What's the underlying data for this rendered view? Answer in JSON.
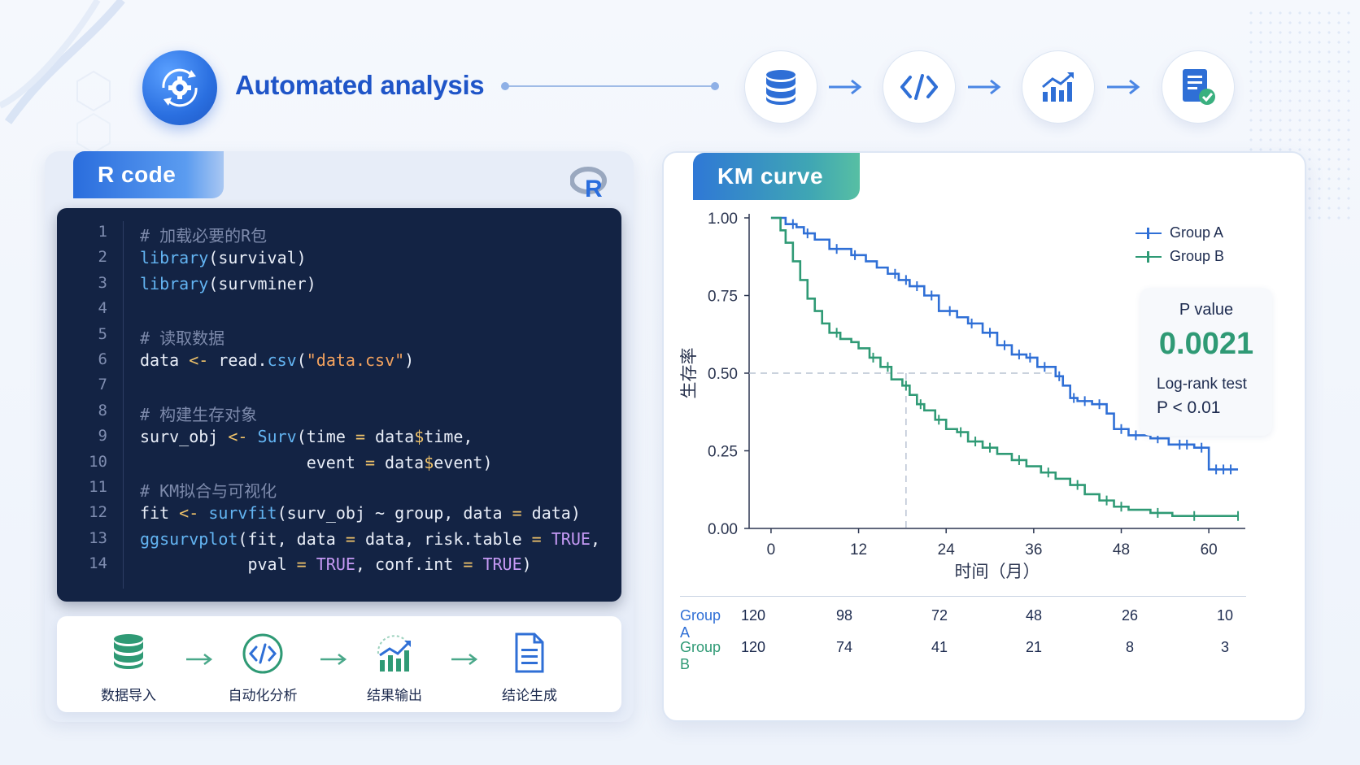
{
  "header": {
    "title": "Automated analysis",
    "flow_icons": [
      "database-icon",
      "code-icon",
      "chart-up-icon",
      "report-check-icon"
    ]
  },
  "colors": {
    "brand_blue": "#1f55c8",
    "group_a": "#2f6fd6",
    "group_b": "#2f9a75",
    "code_bg": "#132344"
  },
  "code_panel": {
    "tab_label": "R code",
    "logo": "r-logo",
    "lines": [
      {
        "n": "1",
        "html": "<span class='c-com'># 加载必要的R包</span>"
      },
      {
        "n": "2",
        "html": "<span class='c-fn'>library</span>(survival)"
      },
      {
        "n": "3",
        "html": "<span class='c-fn'>library</span>(survminer)"
      },
      {
        "n": "4",
        "html": ""
      },
      {
        "n": "5",
        "html": "<span class='c-com'># 读取数据</span>"
      },
      {
        "n": "6",
        "html": "data <span class='c-op'>&lt;-</span> read.<span class='c-fn'>csv</span>(<span class='c-str'>\"data.csv\"</span>)"
      },
      {
        "n": "7",
        "html": ""
      },
      {
        "n": "8",
        "html": "<span class='c-com'># 构建生存对象</span>"
      },
      {
        "n": "9",
        "html": "surv_obj <span class='c-op'>&lt;-</span> <span class='c-fn'>Surv</span>(time <span class='c-op'>=</span> data<span class='c-op'>$</span>time,"
      },
      {
        "n": "10",
        "html": "                 event <span class='c-op'>=</span> data<span class='c-op'>$</span>event)"
      },
      {
        "n": "11",
        "html": "<span class='c-com'># KM拟合与可视化</span>"
      },
      {
        "n": "12",
        "html": "fit <span class='c-op'>&lt;-</span> <span class='c-fn'>survfit</span>(surv_obj ~ group, data <span class='c-op'>=</span> data)"
      },
      {
        "n": "13",
        "html": "<span class='c-fn'>ggsurvplot</span>(fit, data <span class='c-op'>=</span> data, risk.table <span class='c-op'>=</span> <span class='c-kw'>TRUE</span>,"
      },
      {
        "n": "14",
        "html": "           pval <span class='c-op'>=</span> <span class='c-kw'>TRUE</span>, conf.int <span class='c-op'>=</span> <span class='c-kw'>TRUE</span>)"
      }
    ]
  },
  "workflow": {
    "steps": [
      {
        "label": "数据导入",
        "icon": "database-icon"
      },
      {
        "label": "自动化分析",
        "icon": "code-icon"
      },
      {
        "label": "结果输出",
        "icon": "chart-up-icon"
      },
      {
        "label": "结论生成",
        "icon": "document-icon"
      }
    ]
  },
  "km_panel": {
    "tab_label": "KM curve",
    "pvalue_box": {
      "label": "P value",
      "value": "0.0021",
      "test": "Log-rank test",
      "summary": "P < 0.01"
    },
    "risk_table": {
      "rows": [
        {
          "group": "Group A",
          "counts": [
            "120",
            "98",
            "72",
            "48",
            "26",
            "10"
          ]
        },
        {
          "group": "Group B",
          "counts": [
            "120",
            "74",
            "41",
            "21",
            "8",
            "3"
          ]
        }
      ]
    }
  },
  "chart_data": {
    "type": "line",
    "step": true,
    "title": "",
    "xlabel": "时间（月）",
    "ylabel": "生存率",
    "xlim": [
      -3,
      65
    ],
    "ylim": [
      0,
      1.0
    ],
    "x_ticks": [
      0,
      12,
      24,
      36,
      48,
      60
    ],
    "x_tick_labels": [
      "0",
      "12",
      "24",
      "36",
      "48",
      "60"
    ],
    "y_ticks": [
      0,
      0.25,
      0.5,
      0.75,
      1.0
    ],
    "y_tick_labels": [
      "0.00",
      "0.25",
      "0.50",
      "0.75",
      "1.00"
    ],
    "legend": "top-right",
    "median_reference": {
      "y": 0.5,
      "x": 18.5
    },
    "series": [
      {
        "name": "Group A",
        "color": "#2f6fd6",
        "points": [
          [
            0,
            1.0
          ],
          [
            1.5,
            1.0
          ],
          [
            2,
            0.98
          ],
          [
            3.5,
            0.97
          ],
          [
            4.5,
            0.95
          ],
          [
            6,
            0.93
          ],
          [
            8,
            0.9
          ],
          [
            11,
            0.88
          ],
          [
            13,
            0.86
          ],
          [
            14.5,
            0.84
          ],
          [
            16,
            0.82
          ],
          [
            17.5,
            0.8
          ],
          [
            19,
            0.78
          ],
          [
            21,
            0.75
          ],
          [
            23,
            0.7
          ],
          [
            25.5,
            0.68
          ],
          [
            27,
            0.66
          ],
          [
            29,
            0.63
          ],
          [
            31,
            0.59
          ],
          [
            33,
            0.56
          ],
          [
            35,
            0.55
          ],
          [
            36.5,
            0.52
          ],
          [
            39,
            0.49
          ],
          [
            40,
            0.46
          ],
          [
            41,
            0.42
          ],
          [
            42,
            0.41
          ],
          [
            44,
            0.4
          ],
          [
            46,
            0.37
          ],
          [
            47,
            0.32
          ],
          [
            49,
            0.3
          ],
          [
            52,
            0.29
          ],
          [
            54.5,
            0.27
          ],
          [
            58,
            0.26
          ],
          [
            60,
            0.19
          ],
          [
            64,
            0.19
          ]
        ],
        "censor_x": [
          3,
          5,
          9,
          11.5,
          17,
          18.5,
          20,
          22,
          24.5,
          27.5,
          30,
          32,
          34,
          35.5,
          37.5,
          39.5,
          41.5,
          43,
          45,
          48,
          50,
          53,
          56,
          57,
          59,
          61,
          62,
          63
        ]
      },
      {
        "name": "Group B",
        "color": "#2f9a75",
        "points": [
          [
            0,
            1.0
          ],
          [
            1.3,
            0.96
          ],
          [
            2,
            0.92
          ],
          [
            3,
            0.86
          ],
          [
            4,
            0.8
          ],
          [
            5,
            0.74
          ],
          [
            6,
            0.7
          ],
          [
            7,
            0.66
          ],
          [
            8,
            0.63
          ],
          [
            9.5,
            0.61
          ],
          [
            11,
            0.6
          ],
          [
            12,
            0.58
          ],
          [
            13.5,
            0.55
          ],
          [
            15,
            0.52
          ],
          [
            16.5,
            0.48
          ],
          [
            18,
            0.46
          ],
          [
            19,
            0.43
          ],
          [
            20,
            0.4
          ],
          [
            21,
            0.38
          ],
          [
            22.5,
            0.35
          ],
          [
            24,
            0.32
          ],
          [
            25.5,
            0.31
          ],
          [
            27,
            0.28
          ],
          [
            29,
            0.26
          ],
          [
            31,
            0.24
          ],
          [
            33,
            0.22
          ],
          [
            35,
            0.2
          ],
          [
            37,
            0.18
          ],
          [
            39,
            0.16
          ],
          [
            41,
            0.14
          ],
          [
            43,
            0.11
          ],
          [
            45,
            0.09
          ],
          [
            47,
            0.07
          ],
          [
            49,
            0.06
          ],
          [
            52,
            0.05
          ],
          [
            55,
            0.04
          ],
          [
            60,
            0.04
          ],
          [
            64,
            0.04
          ]
        ],
        "censor_x": [
          9,
          14,
          16,
          18.5,
          20.5,
          23,
          26,
          28,
          30,
          34,
          38,
          42,
          46,
          48,
          53,
          58,
          64
        ]
      }
    ]
  }
}
